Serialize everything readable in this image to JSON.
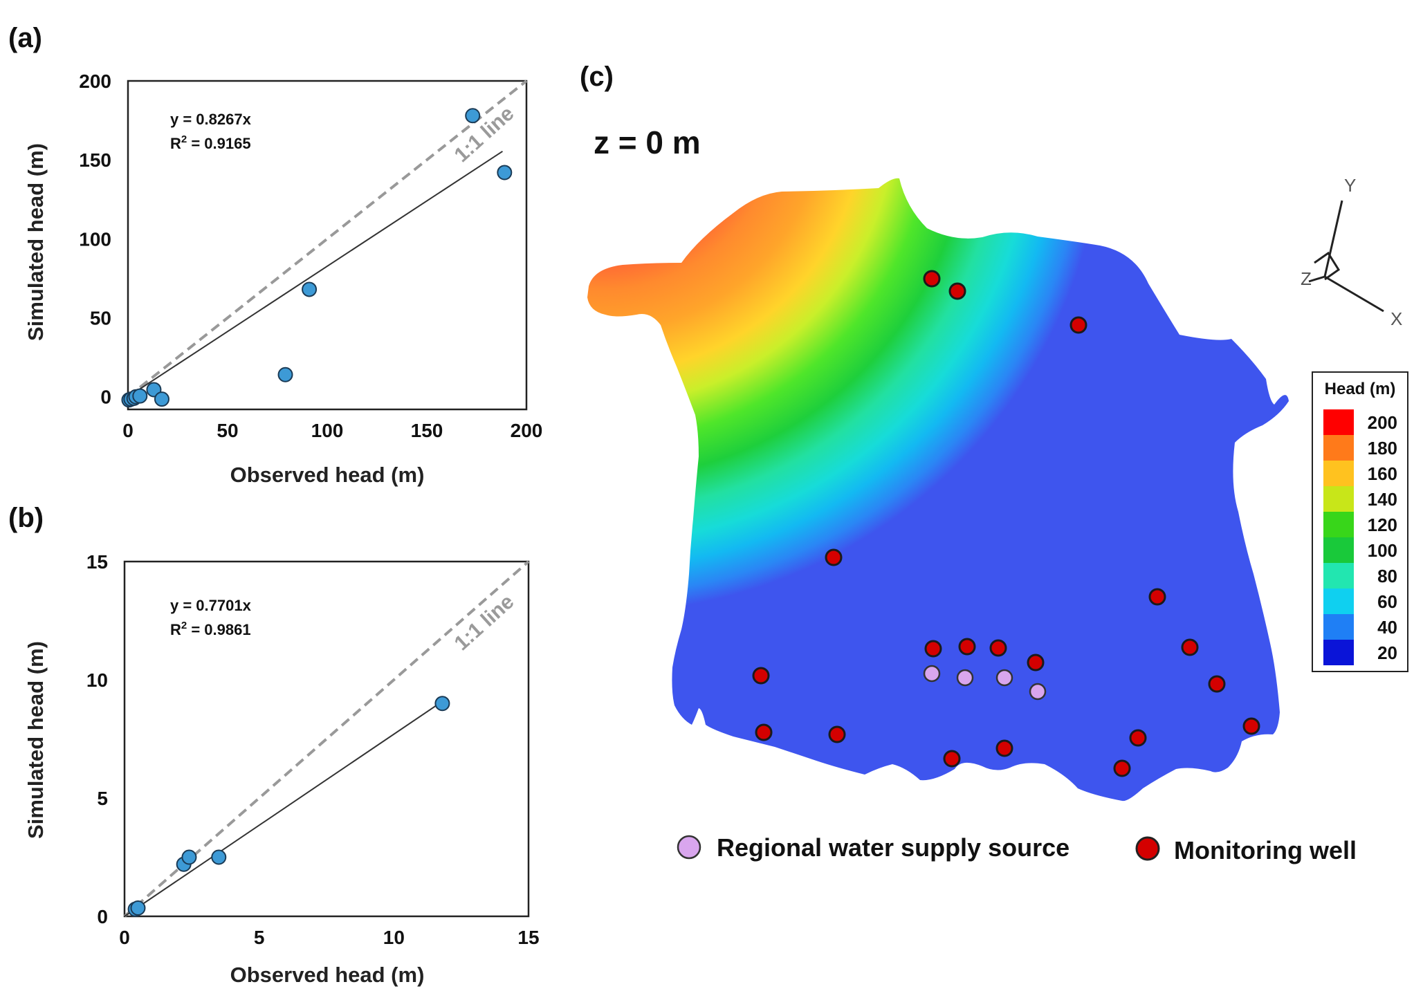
{
  "chart_data": [
    {
      "panel": "(a)",
      "type": "scatter",
      "xlabel": "Observed head (m)",
      "ylabel": "Simulated head (m)",
      "xlim": [
        0,
        200
      ],
      "ylim": [
        -8,
        200
      ],
      "xticks": [
        0,
        50,
        100,
        150,
        200
      ],
      "yticks": [
        0,
        50,
        100,
        150,
        200
      ],
      "points": [
        {
          "x": 0.5,
          "y": -2
        },
        {
          "x": 1.5,
          "y": -1.5
        },
        {
          "x": 3,
          "y": -1
        },
        {
          "x": 4,
          "y": 0
        },
        {
          "x": 6,
          "y": 0.5
        },
        {
          "x": 13,
          "y": 4.5
        },
        {
          "x": 17,
          "y": -1.5
        },
        {
          "x": 79,
          "y": 14
        },
        {
          "x": 91,
          "y": 68
        },
        {
          "x": 173,
          "y": 178
        },
        {
          "x": 189,
          "y": 142
        }
      ],
      "fit": {
        "slope": 0.8267,
        "x_end": 188
      },
      "equation": "y = 0.8267x",
      "r2_prefix": "R",
      "r2_sup": "2",
      "r2_value": " = 0.9165",
      "oneone_label": "1:1 line"
    },
    {
      "panel": "(b)",
      "type": "scatter",
      "xlabel": "Observed head (m)",
      "ylabel": "Simulated head (m)",
      "xlim": [
        0,
        15
      ],
      "ylim": [
        0,
        15
      ],
      "xticks": [
        0,
        5,
        10,
        15
      ],
      "yticks": [
        0,
        5,
        10,
        15
      ],
      "points": [
        {
          "x": 0.4,
          "y": 0.3
        },
        {
          "x": 0.5,
          "y": 0.35
        },
        {
          "x": 2.2,
          "y": 2.2
        },
        {
          "x": 2.4,
          "y": 2.5
        },
        {
          "x": 3.5,
          "y": 2.5
        },
        {
          "x": 11.8,
          "y": 9
        }
      ],
      "fit": {
        "slope": 0.7701,
        "x_end": 11.8
      },
      "equation": "y = 0.7701x",
      "r2_prefix": "R",
      "r2_sup": "2",
      "r2_value": " = 0.9861",
      "oneone_label": "1:1 line"
    },
    {
      "panel": "(c)",
      "type": "contour-map",
      "depth_label": "z  =  0  m",
      "legend_title": "Head (m)",
      "legend_levels": [
        "200",
        "180",
        "160",
        "140",
        "120",
        "100",
        "80",
        "60",
        "40",
        "20"
      ],
      "legend_colors": [
        "#ff0000",
        "#ff7a1a",
        "#ffc21f",
        "#c8e619",
        "#38d61a",
        "#19c93a",
        "#22e6b0",
        "#0fd0f0",
        "#1f7ff5",
        "#0a14d8"
      ],
      "axes_letters": {
        "x": "X",
        "y": "Y",
        "z": "Z"
      },
      "key": {
        "supply_label": "Regional water supply source",
        "monitor_label": "Monitoring well"
      }
    }
  ],
  "colors": {
    "point_fill": "#3d9ad6",
    "point_stroke": "#1a3a55",
    "fit_line": "#333333",
    "oneone_line": "#999999",
    "monitor_fill": "#d40000",
    "supply_fill": "#d9a6ee"
  }
}
